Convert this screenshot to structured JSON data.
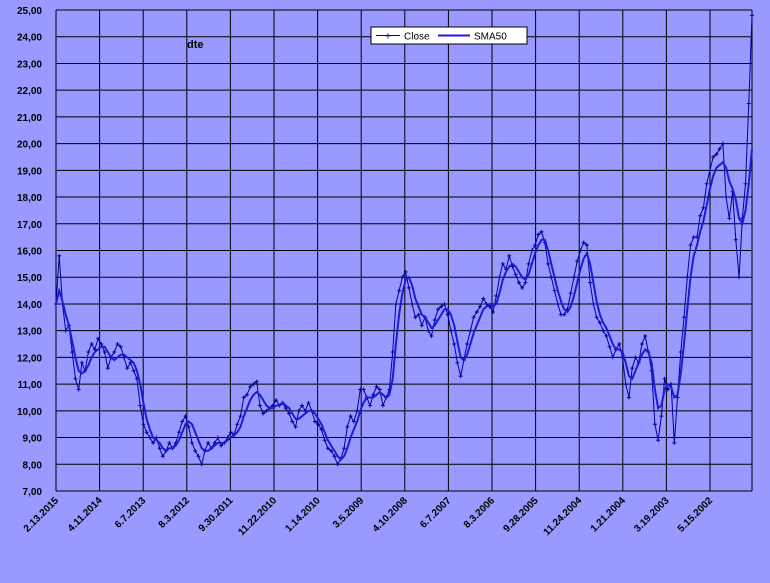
{
  "chart_data": {
    "type": "line",
    "title": "dte",
    "xlabel": "",
    "ylabel": "",
    "ylim": [
      7,
      25
    ],
    "y_step": 1,
    "y_tick_labels": [
      "7,00",
      "8,00",
      "9,00",
      "10,00",
      "11,00",
      "12,00",
      "13,00",
      "14,00",
      "15,00",
      "16,00",
      "17,00",
      "18,00",
      "19,00",
      "20,00",
      "21,00",
      "22,00",
      "23,00",
      "24,00",
      "25,00"
    ],
    "x_tick_labels": [
      "2.13.2015",
      "4.11.2014",
      "6.7.2013",
      "8.3.2012",
      "9.30.2011",
      "11.22.2010",
      "1.14.2010",
      "3.5.2009",
      "4.10.2008",
      "6.7.2007",
      "8.3.2006",
      "9.28.2005",
      "11.24.2004",
      "1.21.2004",
      "3.19.2003",
      "5.15.2002"
    ],
    "x_order": "newest-left",
    "grid": true,
    "legend_position": "top-center",
    "colors": {
      "plot_bg": "#9999ff",
      "grid": "#000000",
      "close": "#000099",
      "sma": "#1c1cd8"
    },
    "series": [
      {
        "name": "Close",
        "markers": "plus",
        "values": [
          14.0,
          15.8,
          14.0,
          13.0,
          13.2,
          12.2,
          11.2,
          10.8,
          11.8,
          11.5,
          12.2,
          12.5,
          12.3,
          12.7,
          12.5,
          12.2,
          11.6,
          12.0,
          12.2,
          12.5,
          12.4,
          12.0,
          11.6,
          11.8,
          11.5,
          11.2,
          10.2,
          9.5,
          9.2,
          9.0,
          8.8,
          9.0,
          8.6,
          8.3,
          8.5,
          8.8,
          8.6,
          8.8,
          9.2,
          9.6,
          9.8,
          9.4,
          8.8,
          8.5,
          8.3,
          8.0,
          8.5,
          8.8,
          8.6,
          8.8,
          9.0,
          8.7,
          8.8,
          9.0,
          9.2,
          9.1,
          9.5,
          9.8,
          10.5,
          10.6,
          10.9,
          11.0,
          11.1,
          10.2,
          9.9,
          10.0,
          10.1,
          10.2,
          10.4,
          10.2,
          10.3,
          10.1,
          9.9,
          9.6,
          9.4,
          10.0,
          10.2,
          10.0,
          10.3,
          10.0,
          9.6,
          9.5,
          9.3,
          8.9,
          8.6,
          8.5,
          8.3,
          8.0,
          8.2,
          8.6,
          9.4,
          9.8,
          9.6,
          10.0,
          10.8,
          10.8,
          10.5,
          10.2,
          10.6,
          10.9,
          10.8,
          10.2,
          10.5,
          10.8,
          12.2,
          14.0,
          14.5,
          15.0,
          15.2,
          14.6,
          14.0,
          13.5,
          13.6,
          13.2,
          13.5,
          13.0,
          12.8,
          13.4,
          13.8,
          13.9,
          14.0,
          13.6,
          13.0,
          12.5,
          11.8,
          11.3,
          11.9,
          12.5,
          13.0,
          13.5,
          13.7,
          13.9,
          14.2,
          14.0,
          13.9,
          13.7,
          14.3,
          15.0,
          15.5,
          15.3,
          15.8,
          15.4,
          15.1,
          14.8,
          14.6,
          14.8,
          15.5,
          16.0,
          16.2,
          16.6,
          16.7,
          16.3,
          15.5,
          15.0,
          14.5,
          14.0,
          13.6,
          13.6,
          13.8,
          14.4,
          15.0,
          15.6,
          16.0,
          16.3,
          16.2,
          14.8,
          14.0,
          13.5,
          13.3,
          13.0,
          12.8,
          12.4,
          12.0,
          12.3,
          12.5,
          12.0,
          11.0,
          10.5,
          11.6,
          12.0,
          11.8,
          12.5,
          12.8,
          12.2,
          11.5,
          9.5,
          8.9,
          9.8,
          11.2,
          10.8,
          11.0,
          8.8,
          10.5,
          12.2,
          13.5,
          15.0,
          16.2,
          16.5,
          16.5,
          17.3,
          17.6,
          18.5,
          19.0,
          19.5,
          19.6,
          19.8,
          20.0,
          18.0,
          17.2,
          18.2,
          16.4,
          15.0,
          17.2,
          18.5,
          21.5,
          24.8
        ]
      },
      {
        "name": "SMA50",
        "values": [
          14.0,
          14.5,
          14.1,
          13.6,
          13.2,
          12.6,
          12.0,
          11.5,
          11.4,
          11.5,
          11.7,
          12.0,
          12.2,
          12.3,
          12.4,
          12.4,
          12.2,
          12.0,
          11.9,
          12.0,
          12.1,
          12.1,
          12.0,
          11.9,
          11.8,
          11.5,
          11.0,
          10.3,
          9.7,
          9.3,
          9.0,
          8.9,
          8.8,
          8.6,
          8.5,
          8.6,
          8.6,
          8.7,
          8.9,
          9.2,
          9.5,
          9.6,
          9.5,
          9.2,
          8.9,
          8.6,
          8.5,
          8.5,
          8.6,
          8.7,
          8.8,
          8.8,
          8.8,
          8.9,
          9.0,
          9.1,
          9.2,
          9.4,
          9.8,
          10.1,
          10.4,
          10.6,
          10.7,
          10.6,
          10.4,
          10.2,
          10.1,
          10.1,
          10.2,
          10.2,
          10.3,
          10.2,
          10.1,
          9.9,
          9.7,
          9.7,
          9.8,
          9.9,
          10.0,
          10.0,
          9.9,
          9.7,
          9.5,
          9.2,
          8.9,
          8.7,
          8.5,
          8.3,
          8.2,
          8.3,
          8.6,
          9.0,
          9.3,
          9.6,
          10.0,
          10.3,
          10.5,
          10.5,
          10.5,
          10.6,
          10.7,
          10.6,
          10.5,
          10.6,
          11.2,
          12.5,
          13.6,
          14.4,
          14.9,
          15.0,
          14.7,
          14.2,
          13.9,
          13.6,
          13.5,
          13.3,
          13.1,
          13.2,
          13.4,
          13.6,
          13.8,
          13.8,
          13.6,
          13.2,
          12.6,
          12.0,
          11.9,
          12.1,
          12.5,
          12.9,
          13.2,
          13.5,
          13.8,
          13.9,
          14.0,
          13.9,
          14.0,
          14.4,
          14.9,
          15.2,
          15.4,
          15.5,
          15.4,
          15.2,
          15.0,
          14.9,
          15.1,
          15.5,
          15.9,
          16.2,
          16.4,
          16.4,
          16.0,
          15.5,
          15.0,
          14.5,
          14.1,
          13.8,
          13.7,
          13.9,
          14.3,
          14.8,
          15.3,
          15.7,
          15.9,
          15.5,
          14.8,
          14.1,
          13.6,
          13.3,
          13.1,
          12.8,
          12.5,
          12.3,
          12.3,
          12.2,
          11.8,
          11.3,
          11.2,
          11.5,
          11.8,
          12.1,
          12.3,
          12.2,
          11.8,
          10.8,
          10.1,
          10.2,
          10.8,
          11.0,
          10.9,
          10.5,
          10.6,
          11.4,
          12.5,
          13.8,
          15.0,
          15.8,
          16.2,
          16.7,
          17.1,
          17.7,
          18.3,
          18.8,
          19.1,
          19.2,
          19.3,
          19.1,
          18.6,
          18.3,
          17.9,
          17.2,
          17.0,
          17.5,
          18.5,
          19.8
        ]
      }
    ]
  }
}
